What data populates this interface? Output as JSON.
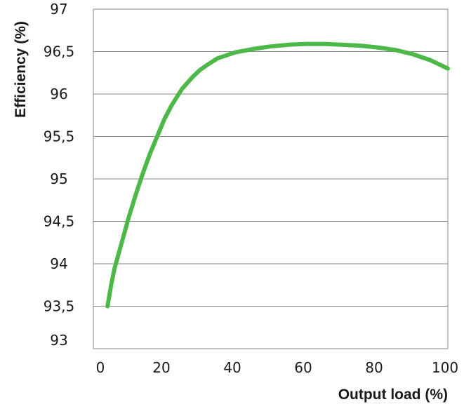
{
  "chart_data": {
    "type": "line",
    "title": "",
    "xlabel": "Output load (%)",
    "ylabel": "Efficiency (%)",
    "xlim": [
      0,
      100
    ],
    "ylim": [
      93,
      97
    ],
    "x_ticks": [
      "0",
      "20",
      "40",
      "60",
      "80",
      "100"
    ],
    "y_ticks": [
      "93",
      "93,5",
      "94",
      "94,5",
      "95",
      "95,5",
      "96",
      "96,5",
      "97"
    ],
    "grid": "horizontal",
    "series": [
      {
        "color": "#4cb848",
        "x": [
          4,
          5,
          6,
          8,
          10,
          12,
          14,
          16,
          18,
          20,
          22,
          25,
          28,
          30,
          32,
          35,
          40,
          45,
          50,
          55,
          60,
          65,
          70,
          75,
          80,
          85,
          90,
          95,
          100
        ],
        "y": [
          93.5,
          93.75,
          93.95,
          94.25,
          94.55,
          94.82,
          95.07,
          95.3,
          95.5,
          95.7,
          95.86,
          96.06,
          96.2,
          96.28,
          96.34,
          96.42,
          96.49,
          96.53,
          96.56,
          96.58,
          96.59,
          96.59,
          96.58,
          96.57,
          96.55,
          96.52,
          96.47,
          96.4,
          96.3
        ]
      }
    ]
  }
}
